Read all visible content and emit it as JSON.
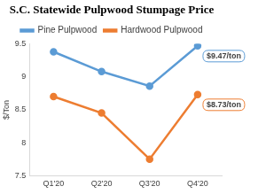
{
  "chart_data": {
    "type": "line",
    "title": "S.C. Statewide Pulpwood Stumpage Price",
    "categories": [
      "Q1'20",
      "Q2'20",
      "Q3'20",
      "Q4'20"
    ],
    "series": [
      {
        "name": "Pine Pulpwood",
        "color": "#5b9bd5",
        "marker": "circle",
        "values": [
          9.38,
          9.08,
          8.86,
          9.47
        ]
      },
      {
        "name": "Hardwood Pulpwood",
        "color": "#ed7d31",
        "marker": "circle",
        "values": [
          8.7,
          8.45,
          7.75,
          8.73
        ]
      }
    ],
    "y_label": "$/Ton",
    "ylim": [
      7.5,
      9.5
    ],
    "yticks": [
      7.5,
      8,
      8.5,
      9,
      9.5
    ],
    "grid": false,
    "legend": "top",
    "annotations": [
      {
        "text": "$9.47/ton",
        "series": "Pine Pulpwood",
        "category": "Q4'20"
      },
      {
        "text": "$8.73/ton",
        "series": "Hardwood Pulpwood",
        "category": "Q4'20"
      }
    ]
  }
}
